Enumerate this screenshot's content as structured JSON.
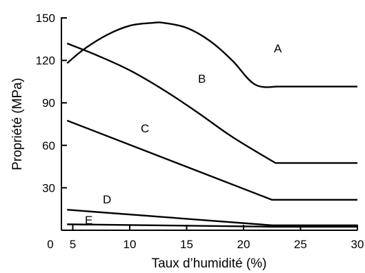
{
  "chart_data": {
    "type": "line",
    "xlabel": "Taux d’humidité (%)",
    "ylabel": "Propriété (MPa)",
    "xlim": [
      0,
      30
    ],
    "ylim": [
      0,
      150
    ],
    "x_origin_label": "0",
    "xticks": [
      5,
      10,
      15,
      20,
      25,
      30
    ],
    "yticks": [
      30,
      60,
      90,
      120,
      150
    ],
    "grid": false,
    "series": [
      {
        "name": "A",
        "x": [
          4.5,
          6,
          8,
          10,
          12,
          13,
          15,
          17,
          19,
          21,
          23,
          30
        ],
        "y": [
          118,
          128,
          138,
          144.5,
          146.5,
          146.5,
          143,
          134,
          120,
          103,
          101.5,
          101.5
        ]
      },
      {
        "name": "B",
        "x": [
          4.5,
          7,
          10,
          13,
          16,
          19,
          22.8,
          30
        ],
        "y": [
          132,
          124,
          113,
          99,
          83,
          66,
          47.5,
          47.5
        ]
      },
      {
        "name": "C",
        "x": [
          4.5,
          22.5,
          30
        ],
        "y": [
          77.5,
          21.5,
          21.5
        ]
      },
      {
        "name": "D",
        "x": [
          4.5,
          22.5,
          30
        ],
        "y": [
          14.5,
          3.5,
          3.5
        ]
      },
      {
        "name": "E",
        "x": [
          4.5,
          22.5,
          30
        ],
        "y": [
          4.2,
          2.5,
          2.5
        ]
      }
    ]
  }
}
